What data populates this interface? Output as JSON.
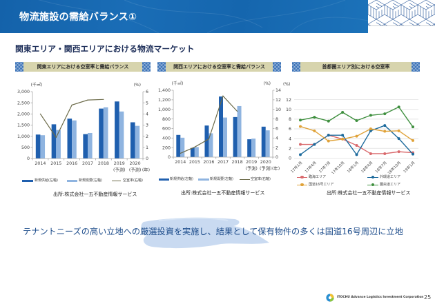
{
  "header": {
    "title": "物流施設の需給バランス①",
    "subtitle": "関東エリア・関西エリアにおける物流マーケット"
  },
  "chart_data": [
    {
      "type": "bar",
      "title": "関東エリアにおける空室率と需給バランス",
      "source": "出所:株式会社一五不動産情報サービス",
      "categories": [
        "2014",
        "2015",
        "2016",
        "2017",
        "2018",
        "2019",
        "2020"
      ],
      "category_notes": [
        "",
        "",
        "",
        "",
        "",
        "(予測)",
        "(予測)"
      ],
      "x_unit": "(年)",
      "ylabel": "(千㎡)",
      "y2label": "(%)",
      "ylim": [
        0,
        3000
      ],
      "y2lim": [
        0,
        6
      ],
      "y_ticks": [
        "0",
        "500",
        "1,000",
        "1,500",
        "2,000",
        "2,500",
        "3,000"
      ],
      "y2_ticks": [
        "0",
        "1",
        "2",
        "3",
        "4",
        "5",
        "6"
      ],
      "grid": false,
      "legend": "bottom",
      "series": [
        {
          "name": "新規供給(左軸)",
          "type": "bar",
          "axis": "left",
          "color": "#1f5fae",
          "values": [
            1075,
            1535,
            1790,
            1095,
            2240,
            2560,
            1625
          ]
        },
        {
          "name": "新規需要(左軸)",
          "type": "bar",
          "axis": "left",
          "color": "#8fb4e0",
          "values": [
            1045,
            1280,
            1710,
            1145,
            2300,
            2110,
            1465
          ]
        },
        {
          "name": "空室率(右軸)",
          "type": "line",
          "axis": "right",
          "color": "#6b6a48",
          "values": [
            4.0,
            1.9,
            4.8,
            5.25,
            5.3,
            null,
            null
          ]
        }
      ]
    },
    {
      "type": "bar",
      "title": "関西エリアにおける空室率と需給バランス",
      "source": "出所:株式会社一五不動産情報サービス",
      "categories": [
        "2014",
        "2015",
        "2016",
        "2017",
        "2018",
        "2019",
        "2020"
      ],
      "category_notes": [
        "",
        "",
        "",
        "",
        "",
        "(予測)",
        "(予測)"
      ],
      "x_unit": "(年)",
      "ylabel": "(千㎡)",
      "y2label": "(%)",
      "ylim": [
        0,
        1400
      ],
      "y2lim": [
        0,
        14
      ],
      "y_ticks": [
        "0",
        "200",
        "400",
        "600",
        "800",
        "1,000",
        "1,200",
        "1,400"
      ],
      "y2_ticks": [
        "0",
        "2",
        "4",
        "6",
        "8",
        "10",
        "12",
        "14"
      ],
      "grid": false,
      "legend": "bottom",
      "series": [
        {
          "name": "新規供給(左軸)",
          "type": "bar",
          "axis": "left",
          "color": "#1f5fae",
          "values": [
            465,
            192,
            662,
            1270,
            839,
            374,
            638
          ]
        },
        {
          "name": "新規需要(左軸)",
          "type": "bar",
          "axis": "left",
          "color": "#8fb4e0",
          "values": [
            407,
            211,
            499,
            829,
            1069,
            388,
            561
          ]
        },
        {
          "name": "空室率(右軸)",
          "type": "line",
          "axis": "right",
          "color": "#6b6a48",
          "values": [
            0.8,
            2.1,
            3.8,
            12.8,
            9.6,
            null,
            null
          ]
        }
      ]
    },
    {
      "type": "line",
      "title": "首都圏エリア別における空室率",
      "source": "出所:株式会社一五不動産情報サービス",
      "ylabel": "(%)",
      "ylim": [
        0,
        12
      ],
      "y_ticks": [
        "0",
        "2",
        "4",
        "6",
        "8",
        "10",
        "12"
      ],
      "x": [
        "17年1月",
        "17年4月",
        "17年7月",
        "17年10月",
        "18年1月",
        "18年4月",
        "18年7月",
        "18年10月",
        "19年1月"
      ],
      "grid": true,
      "legend": "bottom",
      "series": [
        {
          "name": "臨海エリア",
          "color": "#d9696c",
          "values": [
            2.8,
            2.8,
            4.7,
            3.9,
            2.6,
            0.9,
            0.9,
            1.3,
            1.1
          ]
        },
        {
          "name": "外環道エリア",
          "color": "#1c6a9c",
          "values": [
            0.7,
            2.8,
            4.7,
            4.7,
            0.7,
            5.6,
            6.7,
            4.0,
            0.8
          ]
        },
        {
          "name": "国道16号エリア",
          "color": "#e0a238",
          "values": [
            6.5,
            5.6,
            3.5,
            3.9,
            4.5,
            6.0,
            5.5,
            5.6,
            3.6
          ]
        },
        {
          "name": "圏央道エリア",
          "color": "#3e8f3e",
          "values": [
            7.8,
            8.4,
            7.6,
            9.4,
            7.7,
            8.8,
            9.1,
            10.5,
            6.4
          ]
        }
      ]
    }
  ],
  "message": "テナントニーズの高い立地への厳選投資を実施し、結果として保有物件の多くは国道16号周辺に立地",
  "footer": {
    "company": "ITOCHU Advance Logistics Investment Corporation",
    "page": "25"
  },
  "colors": {
    "banner": "#1a6bb4",
    "subtitle": "#1c2d58",
    "message": "#1f4e8c",
    "panel_header": "#d7d4ad"
  }
}
